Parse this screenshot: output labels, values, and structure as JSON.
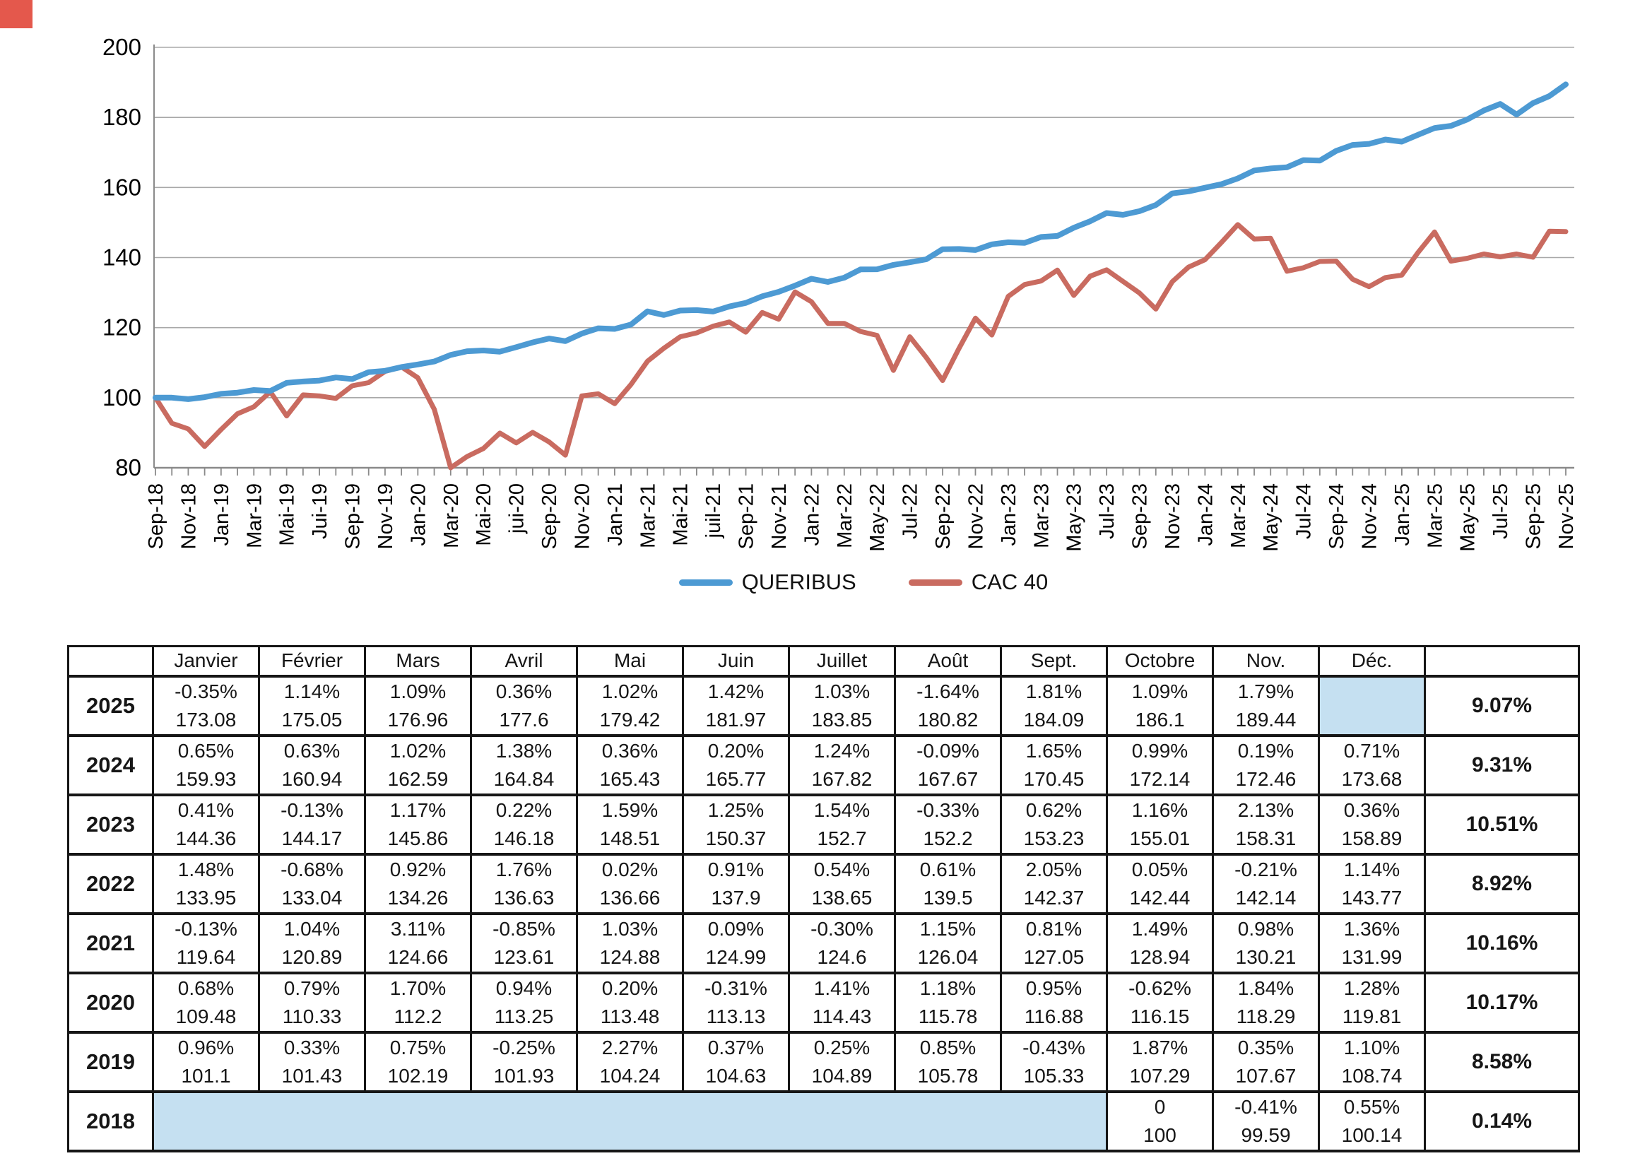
{
  "artifact_color": "#e4584c",
  "chart_data": {
    "type": "line",
    "title": "",
    "ylabel": "",
    "xlabel": "",
    "ylim": [
      80,
      200
    ],
    "yticks": [
      80,
      100,
      120,
      140,
      160,
      180,
      200
    ],
    "grid": "horizontal",
    "legend_position": "bottom-center",
    "x_tick_labels": [
      "Sep-18",
      "Nov-18",
      "Jan-19",
      "Mar-19",
      "Mai-19",
      "Jui-19",
      "Sep-19",
      "Nov-19",
      "Jan-20",
      "Mar-20",
      "Mai-20",
      "jui-20",
      "Sep-20",
      "Nov-20",
      "Jan-21",
      "Mar-21",
      "Mai-21",
      "juil-21",
      "Sep-21",
      "Nov-21",
      "Jan-22",
      "Mar-22",
      "May-22",
      "Jul-22",
      "Sep-22",
      "Nov-22",
      "Jan-23",
      "Mar-23",
      "May-23",
      "Jul-23",
      "Sep-23",
      "Nov-23",
      "Jan-24",
      "Mar-24",
      "May-24",
      "Jul-24",
      "Sep-24",
      "Nov-24",
      "Jan-25",
      "Mar-25",
      "May-25",
      "Jul-25",
      "Sep-25",
      "Nov-25"
    ],
    "months_count": 87,
    "series": [
      {
        "name": "QUERIBUS",
        "color": "#4d9ad3",
        "values": [
          100,
          100,
          99.59,
          100.14,
          101.1,
          101.43,
          102.19,
          101.93,
          104.24,
          104.63,
          104.89,
          105.78,
          105.33,
          107.29,
          107.67,
          108.74,
          109.48,
          110.33,
          112.2,
          113.25,
          113.48,
          113.13,
          114.43,
          115.78,
          116.88,
          116.15,
          118.29,
          119.81,
          119.64,
          120.89,
          124.66,
          123.61,
          124.88,
          124.99,
          124.6,
          126.04,
          127.05,
          128.94,
          130.21,
          131.99,
          133.95,
          133.04,
          134.26,
          136.63,
          136.66,
          137.9,
          138.65,
          139.5,
          142.37,
          142.44,
          142.14,
          143.77,
          144.36,
          144.17,
          145.86,
          146.18,
          148.51,
          150.37,
          152.7,
          152.2,
          153.23,
          155.01,
          158.31,
          158.89,
          159.93,
          160.94,
          162.59,
          164.84,
          165.43,
          165.77,
          167.82,
          167.67,
          170.45,
          172.14,
          172.46,
          173.68,
          173.08,
          175.05,
          176.96,
          177.6,
          179.42,
          181.97,
          183.85,
          180.82,
          184.09,
          186.1,
          189.44
        ]
      },
      {
        "name": "CAC 40",
        "color": "#c96b60",
        "values": [
          100,
          92.7,
          91.1,
          86.1,
          90.9,
          95.4,
          97.4,
          101.7,
          94.8,
          100.8,
          100.5,
          99.8,
          103.4,
          104.3,
          107.5,
          108.8,
          105.7,
          96.7,
          80,
          83.2,
          85.5,
          89.9,
          87.1,
          90.1,
          87.4,
          83.6,
          100.5,
          101.1,
          98.3,
          103.8,
          110.4,
          114.1,
          117.4,
          118.5,
          120.4,
          121.6,
          118.7,
          124.3,
          122.4,
          130.2,
          127.4,
          121.2,
          121.2,
          118.9,
          117.8,
          107.8,
          117.4,
          111.5,
          104.9,
          114.1,
          122.7,
          117.9,
          128.9,
          132.3,
          133.3,
          136.4,
          129.2,
          134.7,
          136.5,
          133.2,
          129.9,
          125.3,
          133.1,
          137.3,
          139.4,
          144.3,
          149.4,
          145.3,
          145.5,
          136.1,
          137.1,
          138.9,
          139,
          133.8,
          131.7,
          134.3,
          135,
          141.5,
          147.3,
          139,
          139.8,
          141,
          140.2,
          141,
          140.1,
          147.5,
          147.4
        ]
      }
    ]
  },
  "table": {
    "month_headers": [
      "Janvier",
      "Février",
      "Mars",
      "Avril",
      "Mai",
      "Juin",
      "Juillet",
      "Août",
      "Sept.",
      "Octobre",
      "Nov.",
      "Déc."
    ],
    "shaded_color": "#c5e0f1",
    "rows": [
      {
        "year": "2025",
        "pct": [
          "-0.35%",
          "1.14%",
          "1.09%",
          "0.36%",
          "1.02%",
          "1.42%",
          "1.03%",
          "-1.64%",
          "1.81%",
          "1.09%",
          "1.79%",
          ""
        ],
        "val": [
          "173.08",
          "175.05",
          "176.96",
          "177.6",
          "179.42",
          "181.97",
          "183.85",
          "180.82",
          "184.09",
          "186.1",
          "189.44",
          ""
        ],
        "shaded": [
          11
        ],
        "annual": "9.07%"
      },
      {
        "year": "2024",
        "pct": [
          "0.65%",
          "0.63%",
          "1.02%",
          "1.38%",
          "0.36%",
          "0.20%",
          "1.24%",
          "-0.09%",
          "1.65%",
          "0.99%",
          "0.19%",
          "0.71%"
        ],
        "val": [
          "159.93",
          "160.94",
          "162.59",
          "164.84",
          "165.43",
          "165.77",
          "167.82",
          "167.67",
          "170.45",
          "172.14",
          "172.46",
          "173.68"
        ],
        "shaded": [],
        "annual": "9.31%"
      },
      {
        "year": "2023",
        "pct": [
          "0.41%",
          "-0.13%",
          "1.17%",
          "0.22%",
          "1.59%",
          "1.25%",
          "1.54%",
          "-0.33%",
          "0.62%",
          "1.16%",
          "2.13%",
          "0.36%"
        ],
        "val": [
          "144.36",
          "144.17",
          "145.86",
          "146.18",
          "148.51",
          "150.37",
          "152.7",
          "152.2",
          "153.23",
          "155.01",
          "158.31",
          "158.89"
        ],
        "shaded": [],
        "annual": "10.51%"
      },
      {
        "year": "2022",
        "pct": [
          "1.48%",
          "-0.68%",
          "0.92%",
          "1.76%",
          "0.02%",
          "0.91%",
          "0.54%",
          "0.61%",
          "2.05%",
          "0.05%",
          "-0.21%",
          "1.14%"
        ],
        "val": [
          "133.95",
          "133.04",
          "134.26",
          "136.63",
          "136.66",
          "137.9",
          "138.65",
          "139.5",
          "142.37",
          "142.44",
          "142.14",
          "143.77"
        ],
        "shaded": [],
        "annual": "8.92%"
      },
      {
        "year": "2021",
        "pct": [
          "-0.13%",
          "1.04%",
          "3.11%",
          "-0.85%",
          "1.03%",
          "0.09%",
          "-0.30%",
          "1.15%",
          "0.81%",
          "1.49%",
          "0.98%",
          "1.36%"
        ],
        "val": [
          "119.64",
          "120.89",
          "124.66",
          "123.61",
          "124.88",
          "124.99",
          "124.6",
          "126.04",
          "127.05",
          "128.94",
          "130.21",
          "131.99"
        ],
        "shaded": [],
        "annual": "10.16%"
      },
      {
        "year": "2020",
        "pct": [
          "0.68%",
          "0.79%",
          "1.70%",
          "0.94%",
          "0.20%",
          "-0.31%",
          "1.41%",
          "1.18%",
          "0.95%",
          "-0.62%",
          "1.84%",
          "1.28%"
        ],
        "val": [
          "109.48",
          "110.33",
          "112.2",
          "113.25",
          "113.48",
          "113.13",
          "114.43",
          "115.78",
          "116.88",
          "116.15",
          "118.29",
          "119.81"
        ],
        "shaded": [],
        "annual": "10.17%"
      },
      {
        "year": "2019",
        "pct": [
          "0.96%",
          "0.33%",
          "0.75%",
          "-0.25%",
          "2.27%",
          "0.37%",
          "0.25%",
          "0.85%",
          "-0.43%",
          "1.87%",
          "0.35%",
          "1.10%"
        ],
        "val": [
          "101.1",
          "101.43",
          "102.19",
          "101.93",
          "104.24",
          "104.63",
          "104.89",
          "105.78",
          "105.33",
          "107.29",
          "107.67",
          "108.74"
        ],
        "shaded": [],
        "annual": "8.58%"
      },
      {
        "year": "2018",
        "pct": [
          "",
          "",
          "",
          "",
          "",
          "",
          "",
          "",
          "",
          "0",
          "-0.41%",
          "0.55%"
        ],
        "val": [
          "",
          "",
          "",
          "",
          "",
          "",
          "",
          "",
          "",
          "100",
          "99.59",
          "100.14"
        ],
        "merged": 9,
        "shaded": [],
        "annual": "0.14%"
      }
    ]
  }
}
